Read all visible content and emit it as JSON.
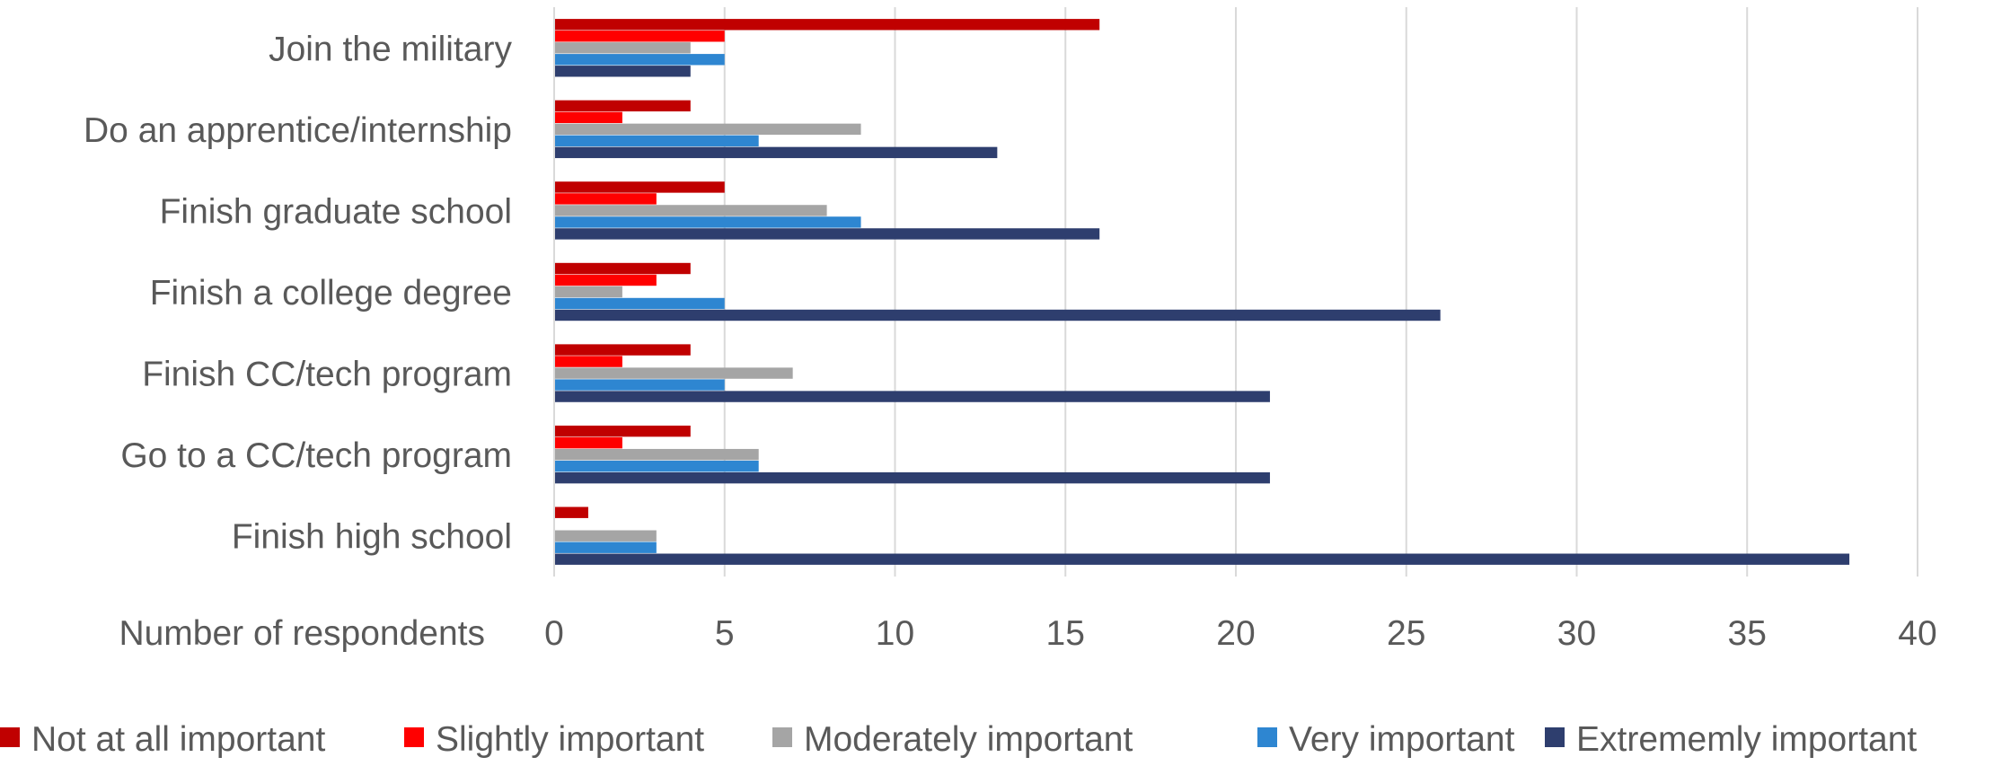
{
  "chart_data": {
    "type": "bar",
    "orientation": "horizontal",
    "categories": [
      "Join the military",
      "Do an apprentice/internship",
      "Finish graduate school",
      "Finish a college degree",
      "Finish CC/tech program",
      "Go to a CC/tech program",
      "Finish high school"
    ],
    "series": [
      {
        "name": "Not at all important",
        "color": "#C00000",
        "values": [
          16,
          4,
          5,
          4,
          4,
          4,
          1
        ]
      },
      {
        "name": "Slightly important",
        "color": "#FF0000",
        "values": [
          5,
          2,
          3,
          3,
          2,
          2,
          0
        ]
      },
      {
        "name": "Moderately important",
        "color": "#A5A5A5",
        "values": [
          4,
          9,
          8,
          2,
          7,
          6,
          3
        ]
      },
      {
        "name": "Very important",
        "color": "#2E86D1",
        "values": [
          5,
          6,
          9,
          5,
          5,
          6,
          3
        ]
      },
      {
        "name": "Extrememly important",
        "color": "#2E3E6E",
        "values": [
          4,
          13,
          16,
          26,
          21,
          21,
          38
        ]
      }
    ],
    "xlabel": "Number of respondents",
    "ylabel": "",
    "title": "",
    "xlim": [
      0,
      40
    ],
    "x_ticks": [
      "0",
      "5",
      "10",
      "15",
      "20",
      "25",
      "30",
      "35",
      "40"
    ],
    "grid": "vertical",
    "legend_position": "bottom"
  }
}
